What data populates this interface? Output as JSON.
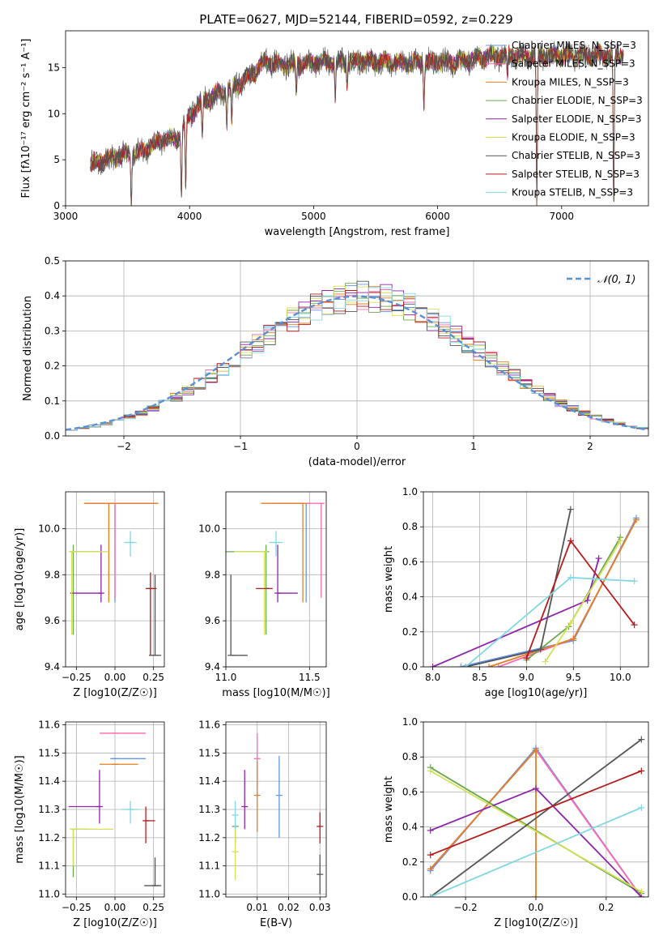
{
  "figure": {
    "title": "PLATE=0627, MJD=52144, FIBERID=0592, z=0.229",
    "colors": {
      "chabrier_miles": "#6495ed",
      "salpeter_miles": "#ff69b4",
      "kroupa_miles": "#e67e22",
      "chabrier_elodie": "#6aa84f",
      "salpeter_elodie": "#8e24aa",
      "kroupa_elodie": "#d4e157",
      "chabrier_stelib": "#555555",
      "salpeter_stelib": "#b71c1c",
      "kroupa_stelib": "#80d8e0",
      "gaussian": "#5b8fd6"
    }
  },
  "chart_data": [
    {
      "id": "spectrum",
      "type": "line",
      "title": "PLATE=0627, MJD=52144, FIBERID=0592, z=0.229",
      "xlabel": "wavelength [Angstrom, rest frame]",
      "ylabel": "Flux [fλ10⁻¹⁷ erg cm⁻² s⁻¹ A⁻¹]",
      "xlim": [
        3000,
        7700
      ],
      "ylim": [
        0,
        19
      ],
      "xticks": [
        "3000",
        "4000",
        "5000",
        "6000",
        "7000"
      ],
      "yticks": [
        "0",
        "5",
        "10",
        "15"
      ],
      "legend_position": "top-right",
      "series": [
        {
          "name": "Chabrier MILES, N_SSP=3",
          "color_key": "chabrier_miles"
        },
        {
          "name": "Salpeter MILES, N_SSP=3",
          "color_key": "salpeter_miles"
        },
        {
          "name": "Kroupa MILES, N_SSP=3",
          "color_key": "kroupa_miles"
        },
        {
          "name": "Chabrier ELODIE, N_SSP=3",
          "color_key": "chabrier_elodie"
        },
        {
          "name": "Salpeter ELODIE, N_SSP=3",
          "color_key": "salpeter_elodie"
        },
        {
          "name": "Kroupa ELODIE, N_SSP=3",
          "color_key": "kroupa_elodie"
        },
        {
          "name": "Chabrier STELIB, N_SSP=3",
          "color_key": "chabrier_stelib"
        },
        {
          "name": "Salpeter STELIB, N_SSP=3",
          "color_key": "salpeter_stelib"
        },
        {
          "name": "Kroupa STELIB, N_SSP=3",
          "color_key": "kroupa_stelib"
        }
      ],
      "continuum": {
        "x": [
          3200,
          3300,
          3400,
          3500,
          3600,
          3700,
          3800,
          3900,
          4000,
          4100,
          4200,
          4300,
          4400,
          4500,
          4600,
          4700,
          4800,
          4900,
          5000,
          5200,
          5400,
          5600,
          5800,
          6000,
          6200,
          6400,
          6600,
          6800,
          7000,
          7200,
          7400,
          7500
        ],
        "y": [
          4.5,
          5.0,
          5.3,
          5.6,
          5.8,
          6.6,
          7.3,
          7.2,
          9.8,
          11.3,
          12.0,
          12.5,
          13.3,
          14.3,
          15.6,
          15.4,
          15.3,
          15.4,
          15.6,
          15.6,
          15.7,
          15.6,
          15.5,
          15.6,
          15.7,
          16.2,
          16.3,
          16.3,
          16.3,
          16.3,
          16.4,
          16.4
        ]
      },
      "absorption_lines": [
        {
          "x": 3530,
          "depth": 1.0
        },
        {
          "x": 3934,
          "depth": 0.9
        },
        {
          "x": 3969,
          "depth": 0.8
        },
        {
          "x": 4102,
          "depth": 0.35
        },
        {
          "x": 4300,
          "depth": 0.3
        },
        {
          "x": 4340,
          "depth": 0.3
        },
        {
          "x": 4861,
          "depth": 0.2
        },
        {
          "x": 5175,
          "depth": 0.25
        },
        {
          "x": 5270,
          "depth": 0.15
        },
        {
          "x": 5890,
          "depth": 0.3
        },
        {
          "x": 6563,
          "depth": 0.15
        },
        {
          "x": 6800,
          "depth": 1.0
        },
        {
          "x": 7420,
          "depth": 1.0
        }
      ]
    },
    {
      "id": "residuals",
      "type": "step",
      "xlabel": "(data-model)/error",
      "ylabel": "Normed distribution",
      "xlim": [
        -2.5,
        2.5
      ],
      "ylim": [
        0,
        0.5
      ],
      "xticks": [
        "−2",
        "−1",
        "0",
        "1",
        "2"
      ],
      "yticks": [
        "0.0",
        "0.1",
        "0.2",
        "0.3",
        "0.4",
        "0.5"
      ],
      "legend": {
        "label": "𝒩(0, 1)",
        "position": "top-right"
      },
      "bin_width": 0.1,
      "gaussian": {
        "mean": 0,
        "sigma": 1
      }
    },
    {
      "id": "age_vs_Z",
      "type": "errorbar",
      "xlabel": "Z [log10(Z/Z☉)]",
      "ylabel": "age [log10(age/yr)]",
      "xlim": [
        -0.32,
        0.32
      ],
      "ylim": [
        9.4,
        10.16
      ],
      "xticks": [
        "−0.25",
        "0.00",
        "0.25"
      ],
      "yticks": [
        "9.4",
        "9.6",
        "9.8",
        "10.0"
      ],
      "points": [
        {
          "color_key": "chabrier_miles",
          "x": 0.0,
          "y": 10.11,
          "xerr": [
            0.18,
            0.28
          ],
          "yerr": [
            0.43,
            0.0
          ]
        },
        {
          "color_key": "salpeter_miles",
          "x": 0.0,
          "y": 10.11,
          "xerr": [
            0.2,
            0.28
          ],
          "yerr": [
            0.41,
            0.0
          ]
        },
        {
          "color_key": "kroupa_miles",
          "x": -0.04,
          "y": 10.11,
          "xerr": [
            0.16,
            0.32
          ],
          "yerr": [
            0.43,
            0.0
          ]
        },
        {
          "color_key": "chabrier_elodie",
          "x": -0.27,
          "y": 9.9,
          "xerr": [
            0.02,
            0.18
          ],
          "yerr": [
            0.36,
            0.03
          ]
        },
        {
          "color_key": "salpeter_elodie",
          "x": -0.09,
          "y": 9.72,
          "xerr": [
            0.2,
            0.0
          ],
          "yerr": [
            0.04,
            0.21
          ]
        },
        {
          "color_key": "kroupa_elodie",
          "x": -0.28,
          "y": 9.9,
          "xerr": [
            0.01,
            0.24
          ],
          "yerr": [
            0.36,
            0.0
          ]
        },
        {
          "color_key": "chabrier_stelib",
          "x": 0.26,
          "y": 9.45,
          "xerr": [
            0.04,
            0.04
          ],
          "yerr": [
            0.0,
            0.35
          ]
        },
        {
          "color_key": "salpeter_stelib",
          "x": 0.23,
          "y": 9.74,
          "xerr": [
            0.03,
            0.04
          ],
          "yerr": [
            0.29,
            0.07
          ]
        },
        {
          "color_key": "kroupa_stelib",
          "x": 0.1,
          "y": 9.94,
          "xerr": [
            0.04,
            0.04
          ],
          "yerr": [
            0.06,
            0.05
          ]
        }
      ]
    },
    {
      "id": "age_vs_mass",
      "type": "errorbar",
      "xlabel": "mass [log10(M/M☉)]",
      "ylabel": "",
      "xlim": [
        11.0,
        11.6
      ],
      "ylim": [
        9.4,
        10.16
      ],
      "xticks": [
        "11.0",
        "11.5"
      ],
      "yticks": [
        "9.4",
        "9.6",
        "9.8",
        "10.0"
      ],
      "points": [
        {
          "color_key": "chabrier_miles",
          "x": 11.48,
          "y": 10.11,
          "xerr": [
            0.2,
            0.0
          ],
          "yerr": [
            0.43,
            0.0
          ]
        },
        {
          "color_key": "salpeter_miles",
          "x": 11.57,
          "y": 10.11,
          "xerr": [
            0.1,
            0.0
          ],
          "yerr": [
            0.41,
            0.0
          ]
        },
        {
          "color_key": "kroupa_miles",
          "x": 11.46,
          "y": 10.11,
          "xerr": [
            0.25,
            0.0
          ],
          "yerr": [
            0.43,
            0.0
          ]
        },
        {
          "color_key": "chabrier_elodie",
          "x": 11.24,
          "y": 9.9,
          "xerr": [
            0.24,
            0.0
          ],
          "yerr": [
            0.36,
            0.03
          ]
        },
        {
          "color_key": "salpeter_elodie",
          "x": 11.31,
          "y": 9.72,
          "xerr": [
            0.0,
            0.12
          ],
          "yerr": [
            0.04,
            0.21
          ]
        },
        {
          "color_key": "kroupa_elodie",
          "x": 11.23,
          "y": 9.9,
          "xerr": [
            0.18,
            0.0
          ],
          "yerr": [
            0.36,
            0.0
          ]
        },
        {
          "color_key": "chabrier_stelib",
          "x": 11.03,
          "y": 9.45,
          "xerr": [
            0.0,
            0.1
          ],
          "yerr": [
            0.0,
            0.35
          ]
        },
        {
          "color_key": "salpeter_stelib",
          "x": 11.26,
          "y": 9.74,
          "xerr": [
            0.08,
            0.0
          ],
          "yerr": [
            0.0,
            0.0
          ]
        },
        {
          "color_key": "kroupa_stelib",
          "x": 11.3,
          "y": 9.94,
          "xerr": [
            0.04,
            0.04
          ],
          "yerr": [
            0.06,
            0.05
          ]
        }
      ]
    },
    {
      "id": "weight_vs_age",
      "type": "line",
      "xlabel": "age [log10(age/yr)]",
      "ylabel": "mass weight",
      "xlim": [
        7.9,
        10.3
      ],
      "ylim": [
        0,
        1.0
      ],
      "xticks": [
        "8.0",
        "8.5",
        "9.0",
        "9.5",
        "10.0"
      ],
      "yticks": [
        "0.0",
        "0.2",
        "0.4",
        "0.6",
        "0.8",
        "1.0"
      ],
      "series": [
        {
          "color_key": "chabrier_miles",
          "x": [
            8.3,
            9.5,
            10.17
          ],
          "y": [
            0.0,
            0.15,
            0.85
          ]
        },
        {
          "color_key": "salpeter_miles",
          "x": [
            8.7,
            9.5,
            10.17
          ],
          "y": [
            0.0,
            0.16,
            0.84
          ]
        },
        {
          "color_key": "kroupa_miles",
          "x": [
            8.6,
            9.5,
            10.17
          ],
          "y": [
            0.0,
            0.16,
            0.84
          ]
        },
        {
          "color_key": "chabrier_elodie",
          "x": [
            9.0,
            9.45,
            10.0
          ],
          "y": [
            0.04,
            0.23,
            0.74
          ]
        },
        {
          "color_key": "salpeter_elodie",
          "x": [
            8.0,
            9.65,
            9.77
          ],
          "y": [
            0.0,
            0.38,
            0.62
          ]
        },
        {
          "color_key": "kroupa_elodie",
          "x": [
            9.2,
            9.47,
            10.0
          ],
          "y": [
            0.03,
            0.25,
            0.72
          ]
        },
        {
          "color_key": "chabrier_stelib",
          "x": [
            8.35,
            9.15,
            9.47
          ],
          "y": [
            0.0,
            0.1,
            0.9
          ]
        },
        {
          "color_key": "salpeter_stelib",
          "x": [
            9.0,
            9.47,
            10.15
          ],
          "y": [
            0.05,
            0.72,
            0.24
          ]
        },
        {
          "color_key": "kroupa_stelib",
          "x": [
            8.35,
            9.47,
            10.15
          ],
          "y": [
            0.0,
            0.51,
            0.49
          ]
        }
      ]
    },
    {
      "id": "mass_vs_Z",
      "type": "errorbar",
      "xlabel": "Z [log10(Z/Z☉)]",
      "ylabel": "mass [log10(M/M☉)]",
      "xlim": [
        -0.32,
        0.32
      ],
      "ylim": [
        10.99,
        11.61
      ],
      "xticks": [
        "−0.25",
        "0.00",
        "0.25"
      ],
      "yticks": [
        "11.0",
        "11.1",
        "11.2",
        "11.3",
        "11.4",
        "11.5",
        "11.6"
      ],
      "points": [
        {
          "color_key": "chabrier_miles",
          "x": 0.0,
          "y": 11.48,
          "xerr": [
            0.03,
            0.2
          ],
          "yerr": [
            0.0,
            0.0
          ]
        },
        {
          "color_key": "salpeter_miles",
          "x": 0.0,
          "y": 11.57,
          "xerr": [
            0.1,
            0.2
          ],
          "yerr": [
            0.0,
            0.0
          ]
        },
        {
          "color_key": "kroupa_miles",
          "x": 0.0,
          "y": 11.46,
          "xerr": [
            0.1,
            0.15
          ],
          "yerr": [
            0.0,
            0.0
          ]
        },
        {
          "color_key": "chabrier_elodie",
          "x": -0.27,
          "y": 11.23,
          "xerr": [
            0.02,
            0.1
          ],
          "yerr": [
            0.17,
            0.0
          ]
        },
        {
          "color_key": "salpeter_elodie",
          "x": -0.1,
          "y": 11.31,
          "xerr": [
            0.2,
            0.0
          ],
          "yerr": [
            0.06,
            0.13
          ]
        },
        {
          "color_key": "kroupa_elodie",
          "x": -0.27,
          "y": 11.23,
          "xerr": [
            0.02,
            0.26
          ],
          "yerr": [
            0.13,
            0.0
          ]
        },
        {
          "color_key": "chabrier_stelib",
          "x": 0.26,
          "y": 11.03,
          "xerr": [
            0.07,
            0.04
          ],
          "yerr": [
            0.0,
            0.1
          ]
        },
        {
          "color_key": "salpeter_stelib",
          "x": 0.2,
          "y": 11.26,
          "xerr": [
            0.0,
            0.06
          ],
          "yerr": [
            0.08,
            0.05
          ]
        },
        {
          "color_key": "kroupa_stelib",
          "x": 0.1,
          "y": 11.3,
          "xerr": [
            0.06,
            0.06
          ],
          "yerr": [
            0.05,
            0.03
          ]
        }
      ]
    },
    {
      "id": "mass_vs_ebv",
      "type": "errorbar",
      "xlabel": "E(B-V)",
      "ylabel": "",
      "xlim": [
        0.0,
        0.032
      ],
      "ylim": [
        10.99,
        11.61
      ],
      "xticks": [
        "0.01",
        "0.02",
        "0.03"
      ],
      "yticks": [
        "11.0",
        "11.1",
        "11.2",
        "11.3",
        "11.4",
        "11.5",
        "11.6"
      ],
      "points": [
        {
          "color_key": "chabrier_miles",
          "x": 0.017,
          "y": 11.35,
          "xerr": [
            0,
            0
          ],
          "yerr": [
            0.15,
            0.14
          ]
        },
        {
          "color_key": "salpeter_miles",
          "x": 0.01,
          "y": 11.48,
          "xerr": [
            0,
            0
          ],
          "yerr": [
            0.1,
            0.09
          ]
        },
        {
          "color_key": "kroupa_miles",
          "x": 0.01,
          "y": 11.35,
          "xerr": [
            0,
            0
          ],
          "yerr": [
            0.13,
            0.12
          ]
        },
        {
          "color_key": "chabrier_elodie",
          "x": 0.003,
          "y": 11.24,
          "xerr": [
            0,
            0
          ],
          "yerr": [
            0.06,
            0.0
          ]
        },
        {
          "color_key": "salpeter_elodie",
          "x": 0.006,
          "y": 11.31,
          "xerr": [
            0,
            0
          ],
          "yerr": [
            0.08,
            0.13
          ]
        },
        {
          "color_key": "kroupa_elodie",
          "x": 0.003,
          "y": 11.15,
          "xerr": [
            0,
            0
          ],
          "yerr": [
            0.1,
            0.1
          ]
        },
        {
          "color_key": "chabrier_stelib",
          "x": 0.03,
          "y": 11.07,
          "xerr": [
            0,
            0
          ],
          "yerr": [
            0.07,
            0.07
          ]
        },
        {
          "color_key": "salpeter_stelib",
          "x": 0.03,
          "y": 11.24,
          "xerr": [
            0,
            0
          ],
          "yerr": [
            0.06,
            0.05
          ]
        },
        {
          "color_key": "kroupa_stelib",
          "x": 0.003,
          "y": 11.28,
          "xerr": [
            0,
            0
          ],
          "yerr": [
            0.05,
            0.05
          ]
        }
      ]
    },
    {
      "id": "weight_vs_Z",
      "type": "line",
      "xlabel": "Z [log10(Z/Z☉)]",
      "ylabel": "mass weight",
      "xlim": [
        -0.32,
        0.32
      ],
      "ylim": [
        0,
        1.0
      ],
      "xticks": [
        "−0.2",
        "0.0",
        "0.2"
      ],
      "yticks": [
        "0.0",
        "0.2",
        "0.4",
        "0.6",
        "0.8",
        "1.0"
      ],
      "series": [
        {
          "color_key": "chabrier_miles",
          "x": [
            -0.3,
            0.0,
            0.3
          ],
          "y": [
            0.15,
            0.85,
            0.0
          ]
        },
        {
          "color_key": "salpeter_miles",
          "x": [
            -0.3,
            0.0,
            0.3
          ],
          "y": [
            0.16,
            0.84,
            0.0
          ]
        },
        {
          "color_key": "kroupa_miles",
          "x": [
            -0.3,
            0.0,
            0.0
          ],
          "y": [
            0.16,
            0.84,
            0.0
          ]
        },
        {
          "color_key": "chabrier_elodie",
          "x": [
            -0.3,
            0.3
          ],
          "y": [
            0.74,
            0.02
          ]
        },
        {
          "color_key": "salpeter_elodie",
          "x": [
            -0.3,
            0.0,
            0.3
          ],
          "y": [
            0.38,
            0.62,
            0.0
          ]
        },
        {
          "color_key": "kroupa_elodie",
          "x": [
            -0.3,
            0.3
          ],
          "y": [
            0.72,
            0.03
          ]
        },
        {
          "color_key": "chabrier_stelib",
          "x": [
            -0.3,
            0.3
          ],
          "y": [
            0.0,
            0.9
          ]
        },
        {
          "color_key": "salpeter_stelib",
          "x": [
            -0.3,
            0.3
          ],
          "y": [
            0.24,
            0.72
          ]
        },
        {
          "color_key": "kroupa_stelib",
          "x": [
            -0.3,
            0.3
          ],
          "y": [
            0.0,
            0.51
          ]
        }
      ]
    }
  ]
}
